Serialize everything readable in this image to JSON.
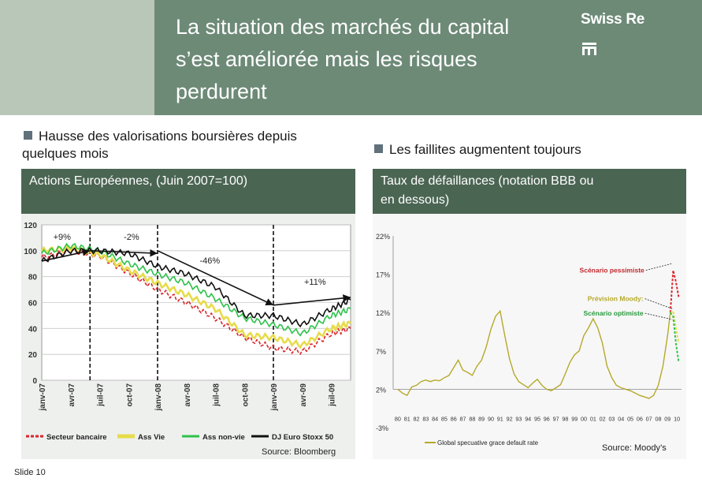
{
  "header": {
    "title_lines": [
      "La situation des marchés du capital",
      "s’est améliorée mais les risques",
      "perdurent"
    ],
    "brand": "Swiss Re"
  },
  "left": {
    "bullet_lines": [
      "Hausse des valorisations boursières depuis",
      "quelques mois"
    ],
    "band_title": "Actions Européennes, (Juin 2007=100)",
    "source": "Source: Bloomberg"
  },
  "right": {
    "bullet": "Les faillites augmentent toujours",
    "band_title_lines": [
      "Taux de défaillances (notation BBB ou",
      "en dessous)"
    ],
    "source": "Source: Moody’s"
  },
  "footer": {
    "slide": "Slide 10"
  },
  "colors": {
    "header_bg": "#6d8a77",
    "header_light": "#b9c7b9",
    "band_bg": "#4b6553",
    "bank": "#d9262c",
    "life": "#e6dc4a",
    "nonlife": "#2ec24a",
    "stoxx": "#111111",
    "default_line": "#b5a92a"
  },
  "chart_data": [
    {
      "type": "line",
      "title": "Actions Européennes, (Juin 2007=100)",
      "ylim": [
        0,
        120
      ],
      "yticks": [
        "0",
        "20",
        "40",
        "60",
        "80",
        "100",
        "120"
      ],
      "xlabels": [
        "janv-07",
        "avr-07",
        "juil-07",
        "oct-07",
        "janv-08",
        "avr-08",
        "juil-08",
        "oct-08",
        "janv-09",
        "avr-09",
        "juil-09"
      ],
      "x": [
        0,
        3,
        6,
        9,
        12,
        15,
        18,
        21,
        24,
        27,
        30,
        32
      ],
      "series": [
        {
          "name": "Secteur bancaire",
          "style": "dashed",
          "values": [
            95,
            100,
            96,
            83,
            70,
            60,
            48,
            33,
            25,
            22,
            36,
            40
          ]
        },
        {
          "name": "Ass Vie",
          "style": "solid",
          "values": [
            100,
            102,
            97,
            85,
            75,
            66,
            55,
            35,
            33,
            27,
            40,
            44
          ]
        },
        {
          "name": "Ass non-vie",
          "style": "solid",
          "values": [
            98,
            104,
            100,
            90,
            82,
            75,
            63,
            48,
            43,
            36,
            50,
            55
          ]
        },
        {
          "name": "DJ Euro Stoxx 50",
          "style": "solid",
          "values": [
            92,
            100,
            100,
            98,
            88,
            82,
            72,
            50,
            50,
            43,
            55,
            62
          ]
        }
      ],
      "annotations": [
        {
          "label": "+9%",
          "from_x": 0,
          "to_x": 5,
          "from_y": 92,
          "to_y": 100
        },
        {
          "label": "-2%",
          "from_x": 5,
          "to_x": 12,
          "from_y": 100,
          "to_y": 98
        },
        {
          "label": "-46%",
          "from_x": 12,
          "to_x": 24,
          "from_y": 100,
          "to_y": 58
        },
        {
          "label": "+11%",
          "from_x": 24,
          "to_x": 32,
          "from_y": 58,
          "to_y": 64
        }
      ],
      "vlines_x": [
        5,
        12,
        24
      ]
    },
    {
      "type": "line",
      "title": "Taux de défaillances (notation BBB ou en dessous)",
      "ylim": [
        -3,
        22
      ],
      "yticks": [
        "-3%",
        "2%",
        "7%",
        "12%",
        "17%",
        "22%"
      ],
      "xlabels": [
        "80",
        "81",
        "82",
        "83",
        "84",
        "85",
        "86",
        "87",
        "88",
        "89",
        "90",
        "91",
        "92",
        "93",
        "94",
        "95",
        "96",
        "97",
        "98",
        "99",
        "00",
        "01",
        "02",
        "03",
        "04",
        "05",
        "06",
        "07",
        "08",
        "09",
        "10"
      ],
      "legend": [
        "Global specuative grace default rate"
      ],
      "series": [
        {
          "name": "Global specuative grace default rate",
          "x": [
            80,
            80.5,
            81,
            81.5,
            82,
            82.5,
            83,
            83.5,
            84,
            84.5,
            85,
            85.5,
            86,
            86.5,
            87,
            87.5,
            88,
            88.5,
            89,
            89.5,
            90,
            90.5,
            91,
            91.5,
            92,
            92.5,
            93,
            93.5,
            94,
            94.5,
            95,
            95.5,
            96,
            96.5,
            97,
            97.5,
            98,
            98.5,
            99,
            99.5,
            100,
            100.5,
            101,
            101.5,
            102,
            102.5,
            103,
            103.5,
            104,
            104.5,
            105,
            105.5,
            106,
            106.5,
            107,
            107.5,
            108,
            108.5,
            109,
            109.3
          ],
          "values": [
            2.0,
            1.5,
            1.2,
            2.3,
            2.5,
            3.0,
            3.2,
            3.0,
            3.2,
            3.1,
            3.5,
            3.8,
            4.8,
            5.8,
            4.5,
            4.2,
            3.8,
            5.0,
            5.8,
            7.5,
            9.8,
            11.5,
            12.2,
            9.0,
            6.0,
            4.0,
            3.0,
            2.6,
            2.2,
            2.8,
            3.3,
            2.5,
            2.0,
            1.8,
            2.2,
            2.6,
            4.0,
            5.5,
            6.5,
            7.0,
            9.0,
            10.0,
            11.2,
            10.0,
            8.0,
            5.0,
            3.5,
            2.5,
            2.2,
            2.0,
            1.8,
            1.5,
            1.2,
            1.0,
            0.8,
            1.2,
            2.5,
            5.0,
            9.0,
            12.0
          ]
        },
        {
          "name": "Scénario pessimiste",
          "style": "dashed",
          "x": [
            109.3,
            109.6,
            109.9,
            110.2
          ],
          "values": [
            12.0,
            17.5,
            16.0,
            14.0
          ]
        },
        {
          "name": "Prévision Moody",
          "style": "dashed",
          "x": [
            109.3,
            109.6,
            109.9,
            110.2
          ],
          "values": [
            12.0,
            12.2,
            10.0,
            8.0
          ]
        },
        {
          "name": "Scénario optimiste",
          "style": "dashed",
          "x": [
            109.3,
            109.6,
            109.9,
            110.2
          ],
          "values": [
            12.0,
            11.5,
            8.0,
            5.5
          ]
        }
      ],
      "annotations": [
        {
          "label": "Scénario pessimiste",
          "x": 106.5,
          "y": 17.2
        },
        {
          "label": "Prévision Moody:",
          "x": 106.4,
          "y": 13.5
        },
        {
          "label": "Scénario optimiste",
          "x": 106.4,
          "y": 11.6
        }
      ]
    }
  ]
}
